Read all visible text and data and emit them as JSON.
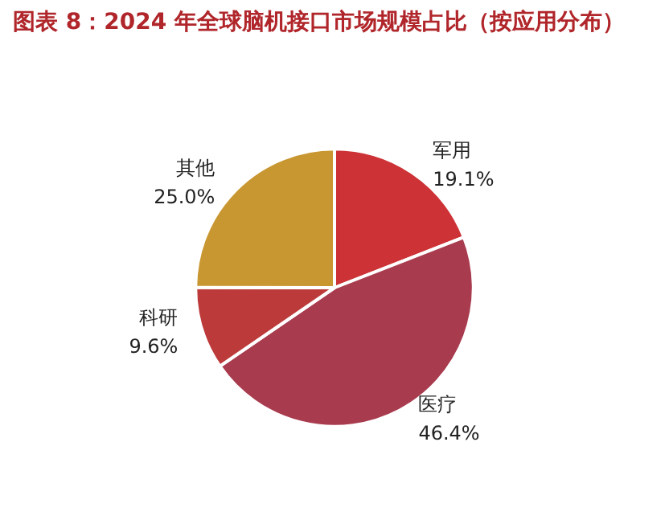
{
  "chart_data": {
    "type": "pie",
    "title": "图表 8：2024 年全球脑机接口市场规模占比（按应用分布）",
    "categories": [
      "军用",
      "医疗",
      "科研",
      "其他"
    ],
    "values": [
      19.1,
      46.4,
      9.6,
      25.0
    ],
    "value_labels": [
      "19.1%",
      "46.4%",
      "9.6%",
      "25.0%"
    ],
    "colors": [
      "#cd3236",
      "#a93b4e",
      "#bd3a3a",
      "#c99732"
    ],
    "legend": false
  }
}
